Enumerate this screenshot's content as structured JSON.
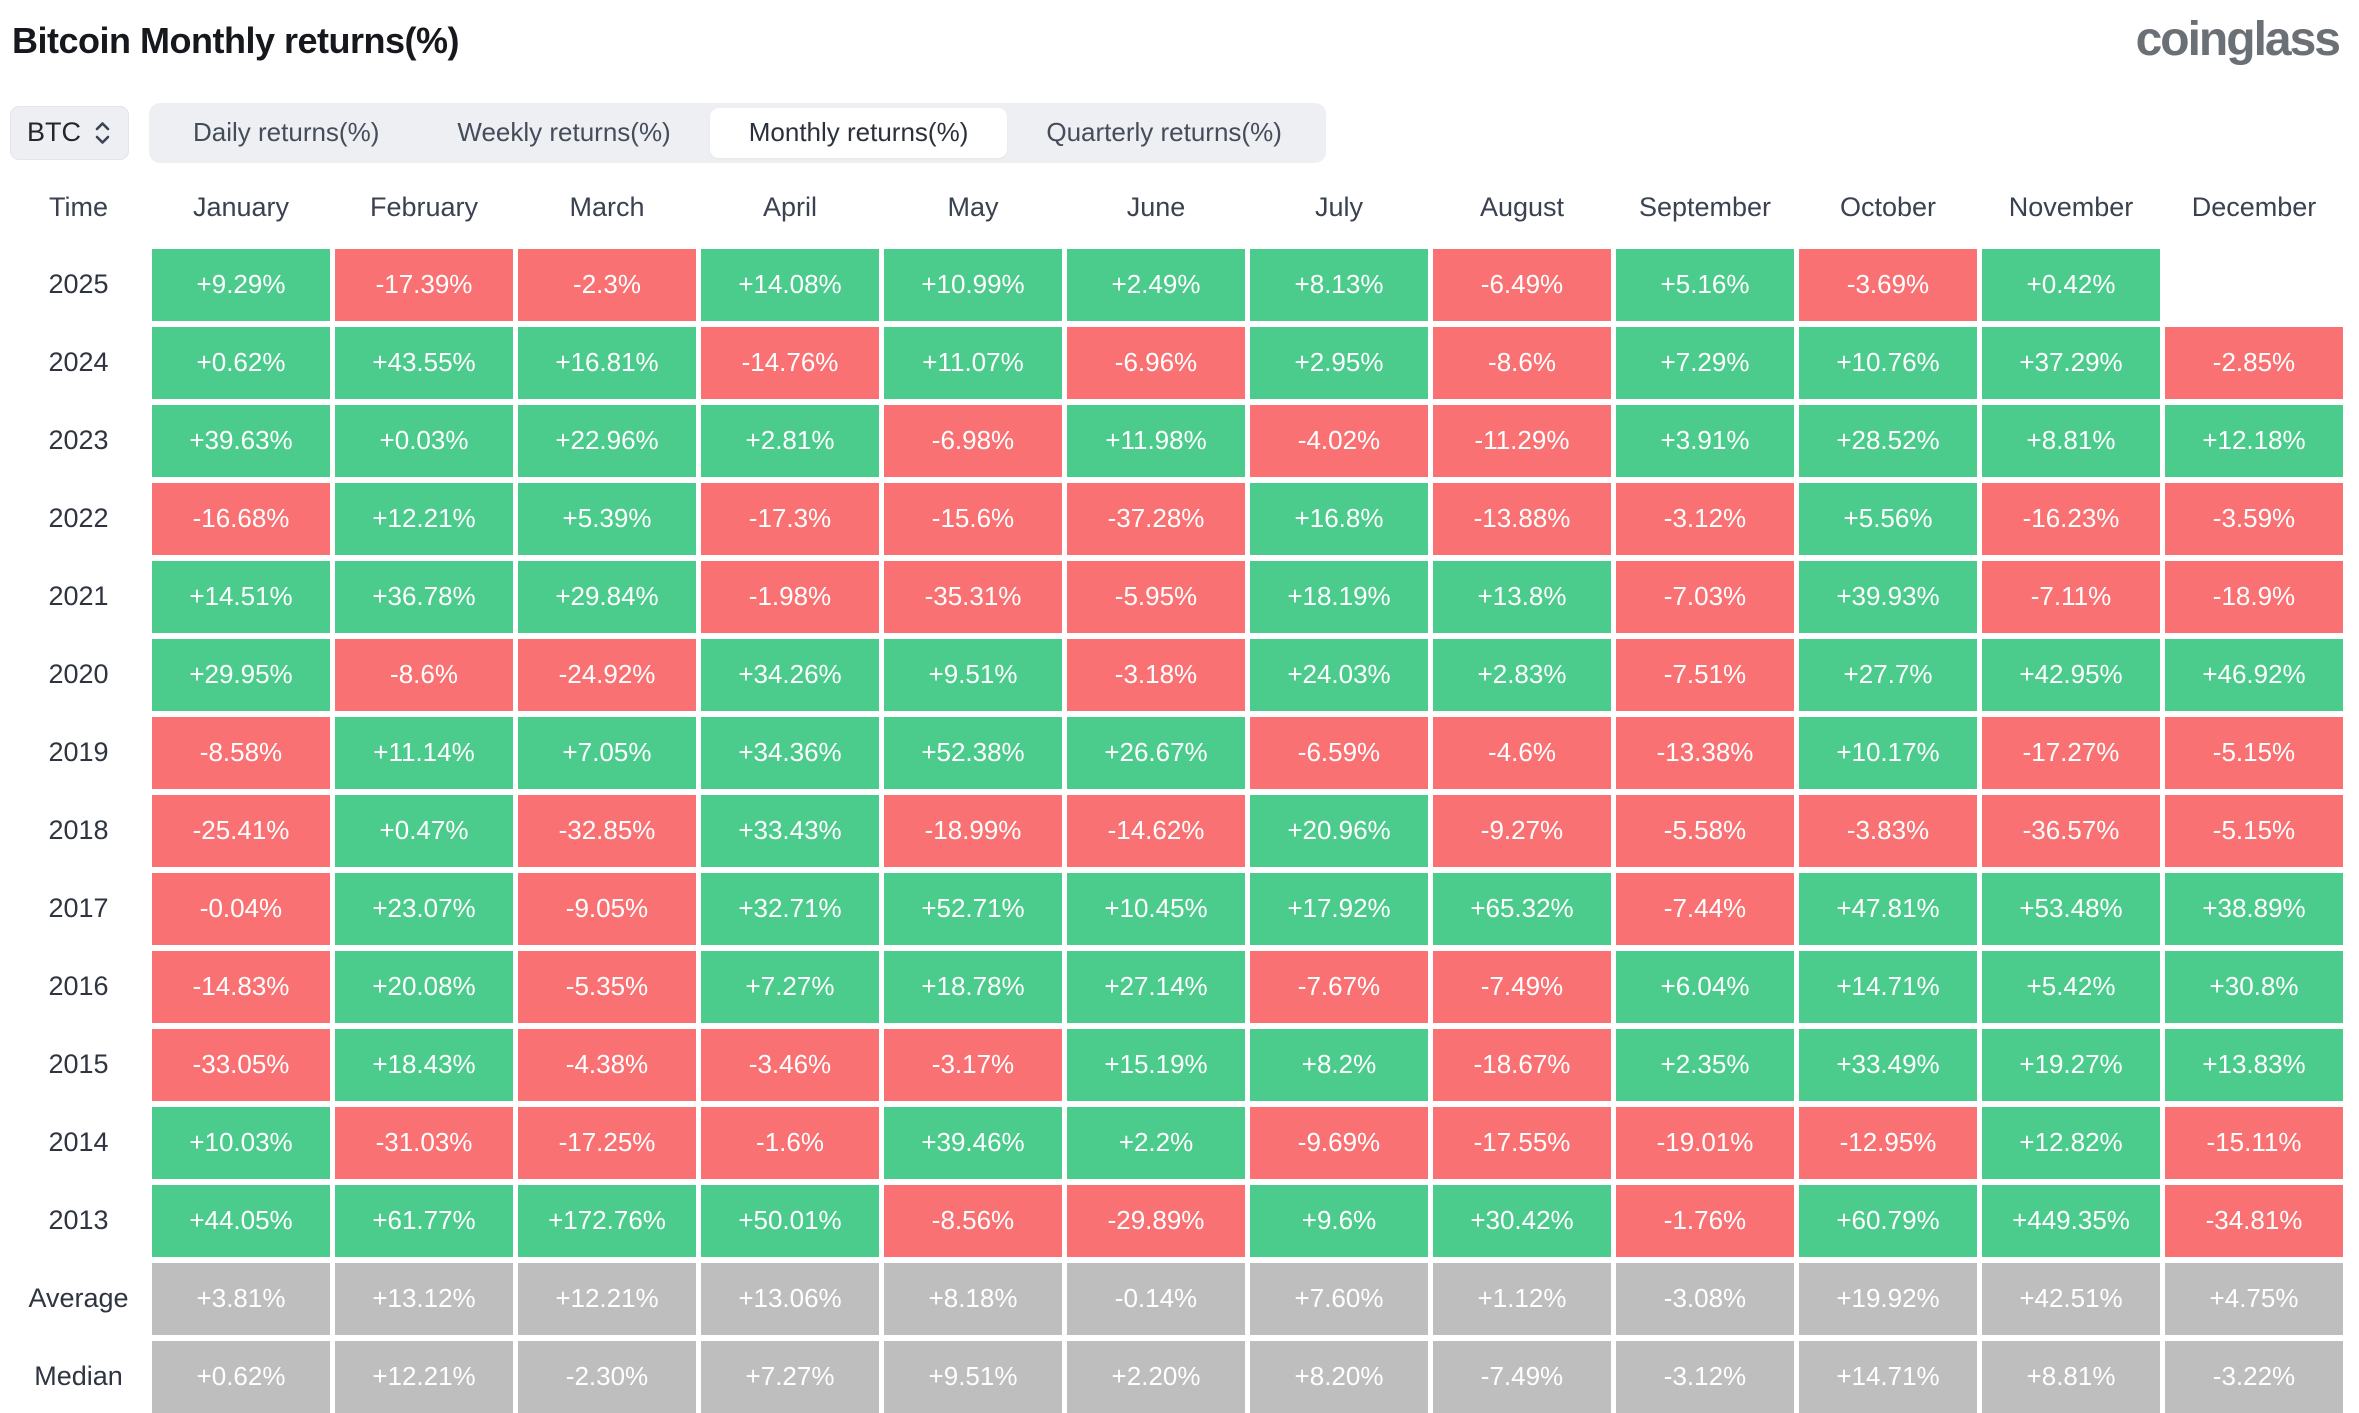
{
  "header": {
    "title": "Bitcoin Monthly returns(%)",
    "logo": "coinglass"
  },
  "controls": {
    "coin": {
      "label": "BTC"
    },
    "tabs": [
      {
        "label": "Daily returns(%)",
        "active": false
      },
      {
        "label": "Weekly returns(%)",
        "active": false
      },
      {
        "label": "Monthly returns(%)",
        "active": true
      },
      {
        "label": "Quarterly returns(%)",
        "active": false
      }
    ]
  },
  "colors": {
    "positive": "#4BCC8C",
    "negative": "#FA7173",
    "neutral": "#BEBEBE"
  },
  "table": {
    "time_header": "Time",
    "months": [
      "January",
      "February",
      "March",
      "April",
      "May",
      "June",
      "July",
      "August",
      "September",
      "October",
      "November",
      "December"
    ],
    "rows": [
      {
        "label": "2025",
        "type": "year",
        "values": [
          "+9.29%",
          "-17.39%",
          "-2.3%",
          "+14.08%",
          "+10.99%",
          "+2.49%",
          "+8.13%",
          "-6.49%",
          "+5.16%",
          "-3.69%",
          "+0.42%",
          null
        ]
      },
      {
        "label": "2024",
        "type": "year",
        "values": [
          "+0.62%",
          "+43.55%",
          "+16.81%",
          "-14.76%",
          "+11.07%",
          "-6.96%",
          "+2.95%",
          "-8.6%",
          "+7.29%",
          "+10.76%",
          "+37.29%",
          "-2.85%"
        ]
      },
      {
        "label": "2023",
        "type": "year",
        "values": [
          "+39.63%",
          "+0.03%",
          "+22.96%",
          "+2.81%",
          "-6.98%",
          "+11.98%",
          "-4.02%",
          "-11.29%",
          "+3.91%",
          "+28.52%",
          "+8.81%",
          "+12.18%"
        ]
      },
      {
        "label": "2022",
        "type": "year",
        "values": [
          "-16.68%",
          "+12.21%",
          "+5.39%",
          "-17.3%",
          "-15.6%",
          "-37.28%",
          "+16.8%",
          "-13.88%",
          "-3.12%",
          "+5.56%",
          "-16.23%",
          "-3.59%"
        ]
      },
      {
        "label": "2021",
        "type": "year",
        "values": [
          "+14.51%",
          "+36.78%",
          "+29.84%",
          "-1.98%",
          "-35.31%",
          "-5.95%",
          "+18.19%",
          "+13.8%",
          "-7.03%",
          "+39.93%",
          "-7.11%",
          "-18.9%"
        ]
      },
      {
        "label": "2020",
        "type": "year",
        "values": [
          "+29.95%",
          "-8.6%",
          "-24.92%",
          "+34.26%",
          "+9.51%",
          "-3.18%",
          "+24.03%",
          "+2.83%",
          "-7.51%",
          "+27.7%",
          "+42.95%",
          "+46.92%"
        ]
      },
      {
        "label": "2019",
        "type": "year",
        "values": [
          "-8.58%",
          "+11.14%",
          "+7.05%",
          "+34.36%",
          "+52.38%",
          "+26.67%",
          "-6.59%",
          "-4.6%",
          "-13.38%",
          "+10.17%",
          "-17.27%",
          "-5.15%"
        ]
      },
      {
        "label": "2018",
        "type": "year",
        "values": [
          "-25.41%",
          "+0.47%",
          "-32.85%",
          "+33.43%",
          "-18.99%",
          "-14.62%",
          "+20.96%",
          "-9.27%",
          "-5.58%",
          "-3.83%",
          "-36.57%",
          "-5.15%"
        ]
      },
      {
        "label": "2017",
        "type": "year",
        "values": [
          "-0.04%",
          "+23.07%",
          "-9.05%",
          "+32.71%",
          "+52.71%",
          "+10.45%",
          "+17.92%",
          "+65.32%",
          "-7.44%",
          "+47.81%",
          "+53.48%",
          "+38.89%"
        ]
      },
      {
        "label": "2016",
        "type": "year",
        "values": [
          "-14.83%",
          "+20.08%",
          "-5.35%",
          "+7.27%",
          "+18.78%",
          "+27.14%",
          "-7.67%",
          "-7.49%",
          "+6.04%",
          "+14.71%",
          "+5.42%",
          "+30.8%"
        ]
      },
      {
        "label": "2015",
        "type": "year",
        "values": [
          "-33.05%",
          "+18.43%",
          "-4.38%",
          "-3.46%",
          "-3.17%",
          "+15.19%",
          "+8.2%",
          "-18.67%",
          "+2.35%",
          "+33.49%",
          "+19.27%",
          "+13.83%"
        ]
      },
      {
        "label": "2014",
        "type": "year",
        "values": [
          "+10.03%",
          "-31.03%",
          "-17.25%",
          "-1.6%",
          "+39.46%",
          "+2.2%",
          "-9.69%",
          "-17.55%",
          "-19.01%",
          "-12.95%",
          "+12.82%",
          "-15.11%"
        ]
      },
      {
        "label": "2013",
        "type": "year",
        "values": [
          "+44.05%",
          "+61.77%",
          "+172.76%",
          "+50.01%",
          "-8.56%",
          "-29.89%",
          "+9.6%",
          "+30.42%",
          "-1.76%",
          "+60.79%",
          "+449.35%",
          "-34.81%"
        ]
      },
      {
        "label": "Average",
        "type": "stat",
        "values": [
          "+3.81%",
          "+13.12%",
          "+12.21%",
          "+13.06%",
          "+8.18%",
          "-0.14%",
          "+7.60%",
          "+1.12%",
          "-3.08%",
          "+19.92%",
          "+42.51%",
          "+4.75%"
        ]
      },
      {
        "label": "Median",
        "type": "stat",
        "values": [
          "+0.62%",
          "+12.21%",
          "-2.30%",
          "+7.27%",
          "+9.51%",
          "+2.20%",
          "+8.20%",
          "-7.49%",
          "-3.12%",
          "+14.71%",
          "+8.81%",
          "-3.22%"
        ]
      }
    ]
  }
}
